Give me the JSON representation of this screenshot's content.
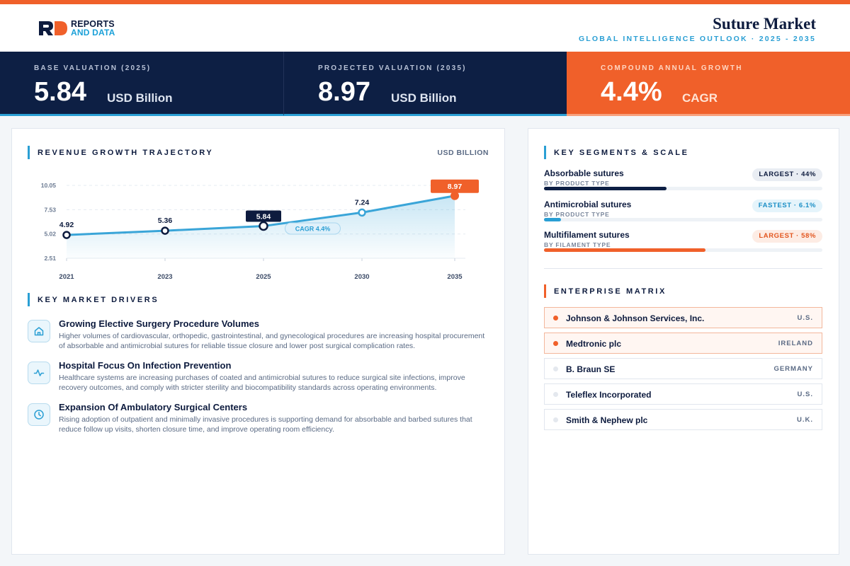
{
  "brand": {
    "line1": "REPORTS",
    "line2": "AND DATA",
    "colors": {
      "navy": "#0d1b3e",
      "orange": "#f0602a",
      "blue": "#2a9fd4"
    }
  },
  "header": {
    "title": "Suture Market",
    "subtitle": "GLOBAL INTELLIGENCE OUTLOOK · 2025 - 2035"
  },
  "kpis": [
    {
      "label": "BASE VALUATION (2025)",
      "value": "5.84",
      "unit": "USD Billion"
    },
    {
      "label": "PROJECTED VALUATION (2035)",
      "value": "8.97",
      "unit": "USD Billion"
    },
    {
      "label": "COMPOUND ANNUAL GROWTH",
      "value": "4.4%",
      "unit": "CAGR"
    }
  ],
  "revenue": {
    "title": "REVENUE GROWTH TRAJECTORY",
    "unit": "USD BILLION"
  },
  "chart_data": {
    "type": "line",
    "title": "REVENUE GROWTH TRAJECTORY",
    "xlabel": "",
    "ylabel": "USD BILLION",
    "x": [
      "2021",
      "2023",
      "2025",
      "2030",
      "2035"
    ],
    "values": [
      4.92,
      5.36,
      5.84,
      7.24,
      8.97
    ],
    "labels": [
      "4.92",
      "5.36",
      "5.84",
      "7.24",
      "8.97"
    ],
    "yticks": [
      "10.05",
      "7.53",
      "5.02",
      "2.51"
    ],
    "ytick_values": [
      10.05,
      7.53,
      5.02,
      2.51
    ],
    "ylim": [
      2.51,
      10.05
    ],
    "annotation": "CAGR 4.4%",
    "grid": true,
    "colors": {
      "line": "#3aa5d8",
      "highlight": "#0d1b3e",
      "final": "#f0602a"
    }
  },
  "drivers": {
    "title": "KEY MARKET DRIVERS",
    "items": [
      {
        "icon": "hospital-icon",
        "title": "Growing Elective Surgery Procedure Volumes",
        "desc": "Higher volumes of cardiovascular, orthopedic, gastrointestinal, and gynecological procedures are increasing hospital procurement of absorbable and antimicrobial sutures for reliable tissue closure and lower post surgical complication rates."
      },
      {
        "icon": "pulse-icon",
        "title": "Hospital Focus On Infection Prevention",
        "desc": "Healthcare systems are increasing purchases of coated and antimicrobial sutures to reduce surgical site infections, improve recovery outcomes, and comply with stricter sterility and biocompatibility standards across operating environments."
      },
      {
        "icon": "clock-icon",
        "title": "Expansion Of Ambulatory Surgical Centers",
        "desc": "Rising adoption of outpatient and minimally invasive procedures is supporting demand for absorbable and barbed sutures that reduce follow up visits, shorten closure time, and improve operating room efficiency."
      }
    ]
  },
  "segments": {
    "title": "KEY SEGMENTS & SCALE",
    "items": [
      {
        "name": "Absorbable sutures",
        "sub": "BY PRODUCT TYPE",
        "badge": "LARGEST · 44%",
        "share": 0.44,
        "color": "#0d1f44",
        "badge_bg": "#e9edf3",
        "badge_fg": "#0d1b3e"
      },
      {
        "name": "Antimicrobial sutures",
        "sub": "BY PRODUCT TYPE",
        "badge": "FASTEST · 6.1%",
        "share": 0.061,
        "color": "#2a9fd4",
        "badge_bg": "#e5f4fb",
        "badge_fg": "#1c8fc6"
      },
      {
        "name": "Multifilament sutures",
        "sub": "BY FILAMENT TYPE",
        "badge": "LARGEST · 58%",
        "share": 0.58,
        "color": "#f0602a",
        "badge_bg": "#fdece4",
        "badge_fg": "#e2561f"
      }
    ]
  },
  "enterprise": {
    "title": "ENTERPRISE MATRIX",
    "companies": [
      {
        "name": "Johnson & Johnson Services, Inc.",
        "country": "U.S.",
        "highlight": true
      },
      {
        "name": "Medtronic plc",
        "country": "IRELAND",
        "highlight": true
      },
      {
        "name": "B. Braun SE",
        "country": "GERMANY",
        "highlight": false
      },
      {
        "name": "Teleflex Incorporated",
        "country": "U.S.",
        "highlight": false
      },
      {
        "name": "Smith & Nephew plc",
        "country": "U.K.",
        "highlight": false
      }
    ]
  }
}
